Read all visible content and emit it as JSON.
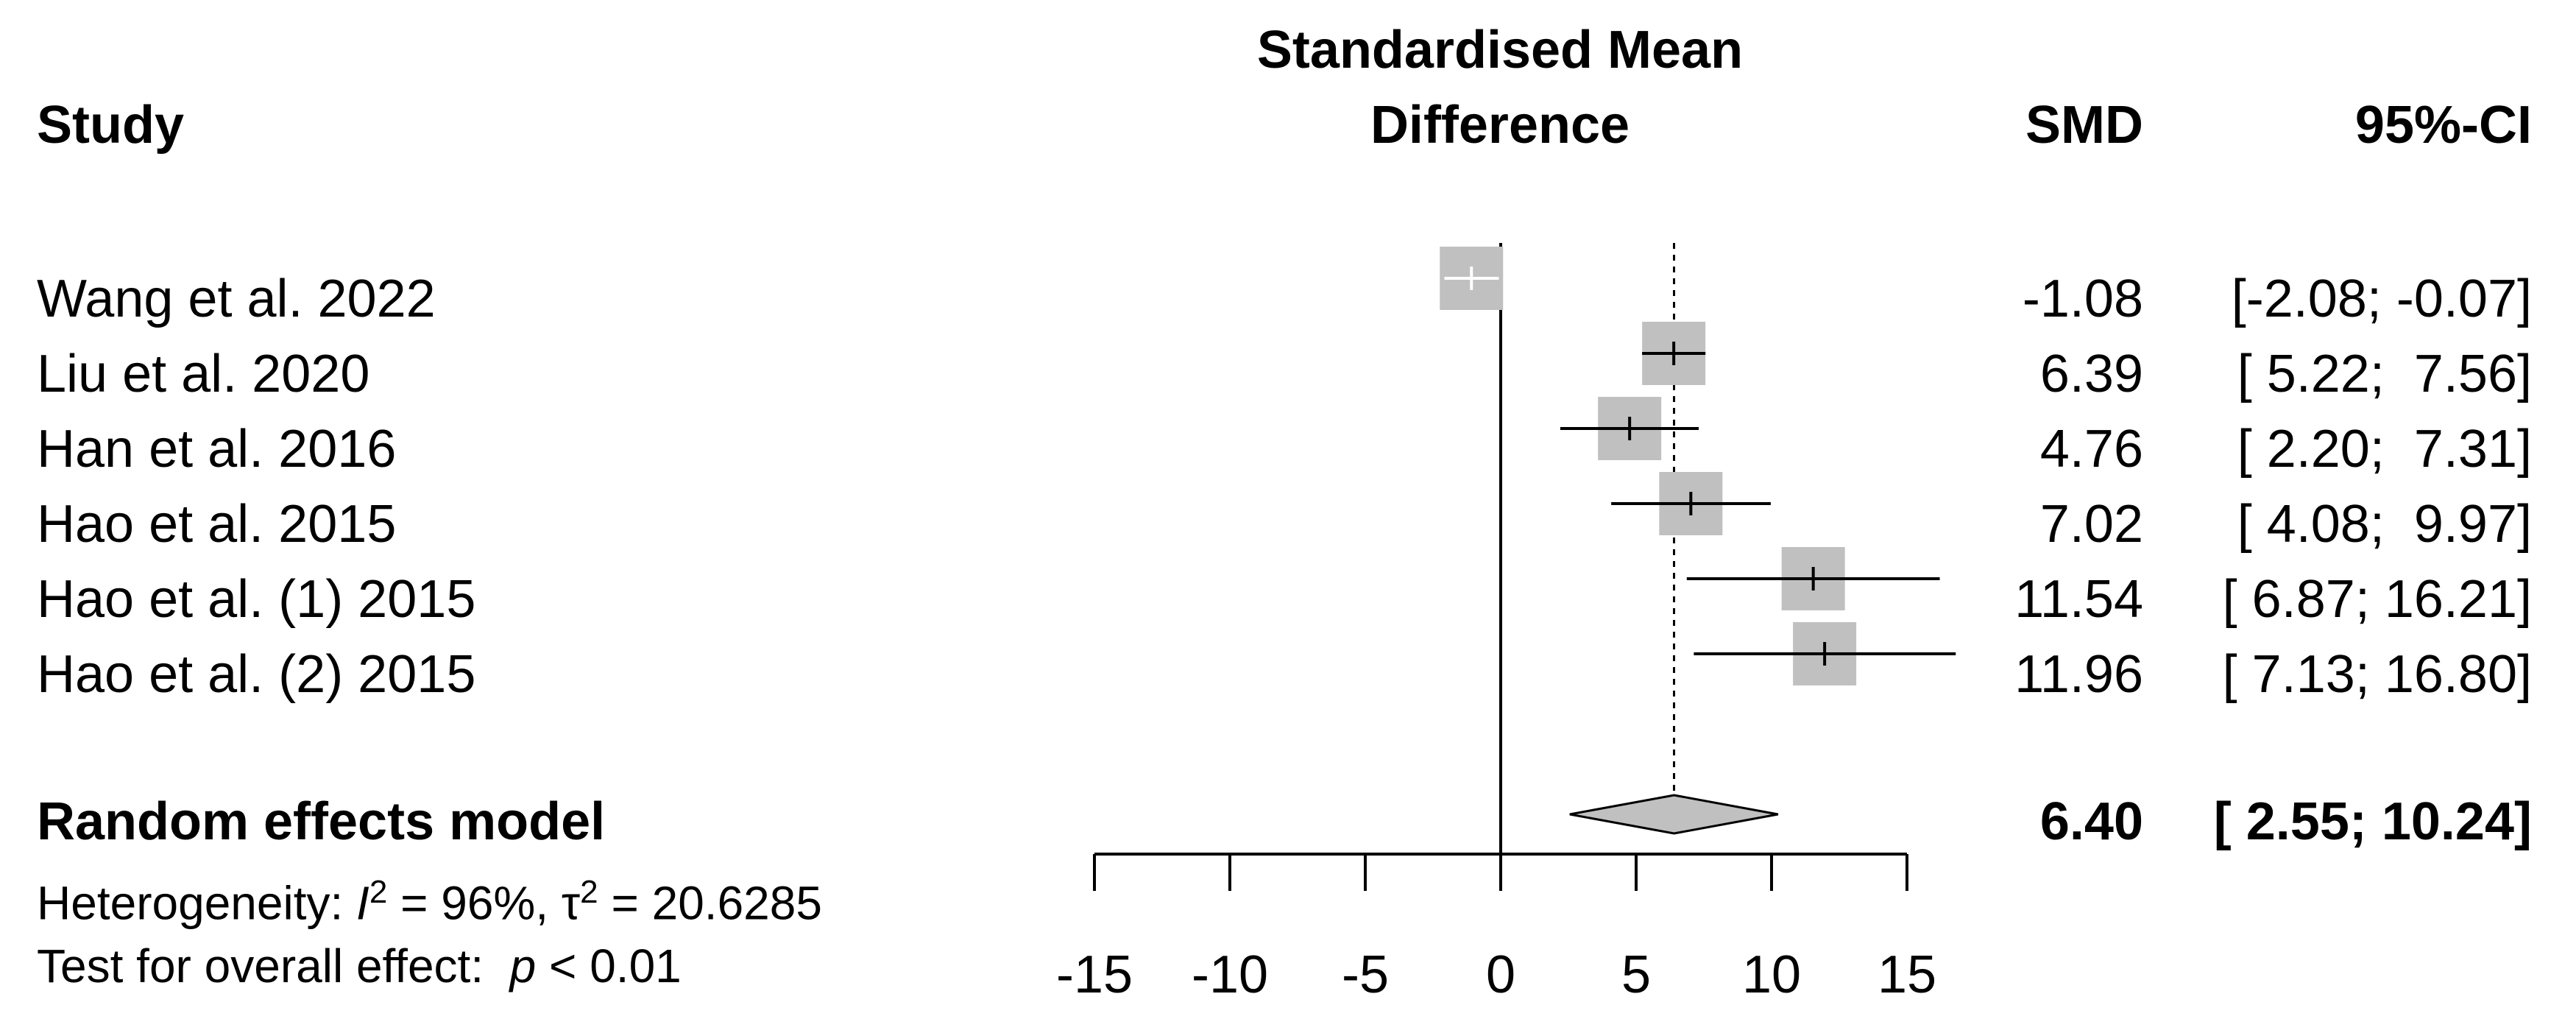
{
  "chart_data": {
    "type": "forest",
    "headers": {
      "study": "Study",
      "title_line1": "Standardised Mean",
      "title_line2": "Difference",
      "smd": "SMD",
      "ci": "95%-CI"
    },
    "studies": [
      {
        "name": "Wang et al. 2022",
        "smd": -1.08,
        "lower": -2.08,
        "upper": -0.07,
        "smd_text": "-1.08",
        "ci_text": "[-2.08; -0.07]",
        "marker_color": "#ffffff"
      },
      {
        "name": "Liu et al. 2020",
        "smd": 6.39,
        "lower": 5.22,
        "upper": 7.56,
        "smd_text": "6.39",
        "ci_text": "[ 5.22;  7.56]",
        "marker_color": "#000000"
      },
      {
        "name": "Han et al. 2016",
        "smd": 4.76,
        "lower": 2.2,
        "upper": 7.31,
        "smd_text": "4.76",
        "ci_text": "[ 2.20;  7.31]",
        "marker_color": "#000000"
      },
      {
        "name": "Hao et al. 2015",
        "smd": 7.02,
        "lower": 4.08,
        "upper": 9.97,
        "smd_text": "7.02",
        "ci_text": "[ 4.08;  9.97]",
        "marker_color": "#000000"
      },
      {
        "name": "Hao et al. (1) 2015",
        "smd": 11.54,
        "lower": 6.87,
        "upper": 16.21,
        "smd_text": "11.54",
        "ci_text": "[ 6.87; 16.21]",
        "marker_color": "#000000"
      },
      {
        "name": "Hao et al. (2) 2015",
        "smd": 11.96,
        "lower": 7.13,
        "upper": 16.8,
        "smd_text": "11.96",
        "ci_text": "[ 7.13; 16.80]",
        "marker_color": "#000000"
      }
    ],
    "pooled": {
      "label": "Random effects model",
      "smd": 6.4,
      "lower": 2.55,
      "upper": 10.24,
      "smd_text": "6.40",
      "ci_text": "[ 2.55; 10.24]"
    },
    "heterogeneity": {
      "prefix": "Heterogeneity: ",
      "i2_symbol": "I",
      "i2_sup": "2",
      "i2_value": " = 96%, ",
      "tau_symbol": "τ",
      "tau_sup": "2",
      "tau_value": " = 20.6285"
    },
    "overall_effect": {
      "prefix": "Test for overall effect:  ",
      "p_symbol": "p",
      "p_value": " < 0.01"
    },
    "xaxis": {
      "range": [
        -15,
        15
      ],
      "ticks": [
        -15,
        -10,
        -5,
        0,
        5,
        10,
        15
      ],
      "tick_labels": [
        "-15",
        "-10",
        "-5",
        "0",
        "5",
        "10",
        "15"
      ]
    },
    "colors": {
      "square": "#c0c0c0",
      "diamond": "#c0c0c0",
      "line": "#000000"
    }
  }
}
